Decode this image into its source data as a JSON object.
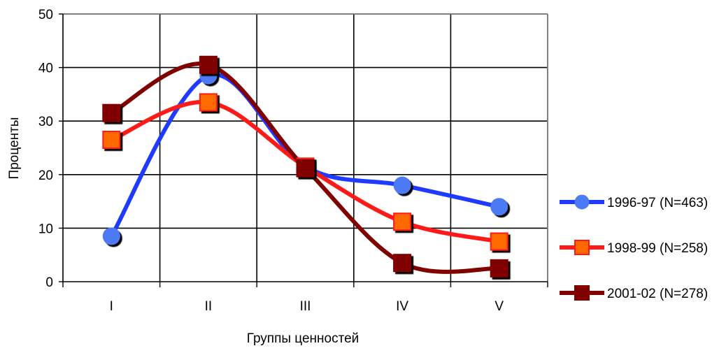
{
  "chart_data": {
    "type": "line",
    "categories": [
      "I",
      "II",
      "III",
      "IV",
      "V"
    ],
    "ylim": [
      0,
      50
    ],
    "yticks": [
      "0",
      "10",
      "20",
      "30",
      "40",
      "50"
    ],
    "xlabel": "Группы ценностей",
    "ylabel": "Проценты",
    "grid": true,
    "legend_position": "right",
    "series": [
      {
        "name": "1996-97 (N=463)",
        "values": [
          8.5,
          38.5,
          21.5,
          18,
          14
        ],
        "color": "#1f3bff",
        "marker": "circle",
        "marker_fill": "#4d79f5"
      },
      {
        "name": "1998-99 (N=258)",
        "values": [
          26.5,
          33.5,
          21.5,
          11.2,
          7.5
        ],
        "color": "#ff1a1a",
        "marker": "square",
        "marker_fill": "#ff6a00"
      },
      {
        "name": "2001-02 (N=278)",
        "values": [
          31.5,
          40.5,
          21.2,
          3.5,
          2.5
        ],
        "color": "#800000",
        "marker": "square",
        "marker_fill": "#800000"
      }
    ]
  }
}
